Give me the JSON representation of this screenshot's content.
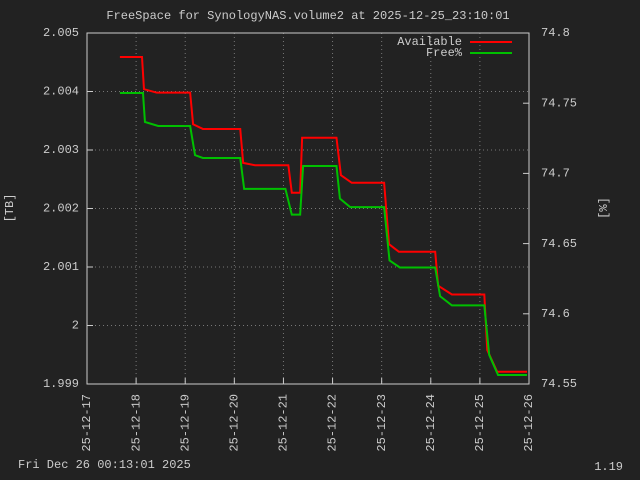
{
  "chart_data": {
    "type": "line",
    "title": "FreeSpace for SynologyNAS.volume2  at 2025-12-25_23:10:01",
    "y_label": "[TB]",
    "y2_label": "[%]",
    "footer_left": "Fri Dec 26 00:13:01 2025",
    "footer_right": "1.19",
    "xlim": [
      17,
      26
    ],
    "xticks": [
      {
        "value": 17,
        "label": "25-12-17"
      },
      {
        "value": 18,
        "label": "25-12-18"
      },
      {
        "value": 19,
        "label": "25-12-19"
      },
      {
        "value": 20,
        "label": "25-12-20"
      },
      {
        "value": 21,
        "label": "25-12-21"
      },
      {
        "value": 22,
        "label": "25-12-22"
      },
      {
        "value": 23,
        "label": "25-12-23"
      },
      {
        "value": 24,
        "label": "25-12-24"
      },
      {
        "value": 25,
        "label": "25-12-25"
      },
      {
        "value": 26,
        "label": "25-12-26"
      }
    ],
    "ylim": [
      1.999,
      2.005
    ],
    "yticks": [
      1.999,
      2,
      2.001,
      2.002,
      2.003,
      2.004,
      2.005
    ],
    "y2lim": [
      74.55,
      74.8
    ],
    "y2ticks": [
      74.55,
      74.6,
      74.65,
      74.7,
      74.75,
      74.8
    ],
    "grid": true,
    "legend": "top-right",
    "series": [
      {
        "name": "Available",
        "color": "#ff0000",
        "x": [
          17.67,
          18.12,
          18.16,
          18.42,
          19.1,
          19.16,
          19.36,
          20.12,
          20.18,
          20.42,
          21.1,
          21.17,
          21.34,
          21.38,
          22.08,
          22.17,
          22.39,
          23.05,
          23.15,
          23.35,
          24.09,
          24.15,
          24.43,
          25.09,
          25.15,
          25.35,
          25.96
        ],
        "values": [
          2.00459,
          2.00459,
          2.00404,
          2.00398,
          2.00398,
          2.00344,
          2.00336,
          2.00336,
          2.00278,
          2.00274,
          2.00274,
          2.00227,
          2.00227,
          2.00321,
          2.00321,
          2.00257,
          2.00244,
          2.00244,
          2.00139,
          2.00126,
          2.00126,
          2.00068,
          2.00053,
          2.00053,
          1.99958,
          1.99921,
          1.99921
        ]
      },
      {
        "name": "Free%",
        "color": "#00c000",
        "axis": "y2",
        "x": [
          17.67,
          18.14,
          18.18,
          18.45,
          19.1,
          19.2,
          19.36,
          20.12,
          20.2,
          21.04,
          21.17,
          21.34,
          21.4,
          22.08,
          22.15,
          22.36,
          23.05,
          23.16,
          23.37,
          24.09,
          24.19,
          24.43,
          25.09,
          25.19,
          25.37,
          25.96
        ],
        "values": [
          74.7573,
          74.7573,
          74.7366,
          74.7338,
          74.7338,
          74.713,
          74.711,
          74.711,
          74.689,
          74.689,
          74.6706,
          74.6706,
          74.7053,
          74.7053,
          74.682,
          74.676,
          74.676,
          74.638,
          74.633,
          74.633,
          74.6125,
          74.606,
          74.606,
          74.5707,
          74.5564,
          74.5564
        ]
      }
    ]
  }
}
